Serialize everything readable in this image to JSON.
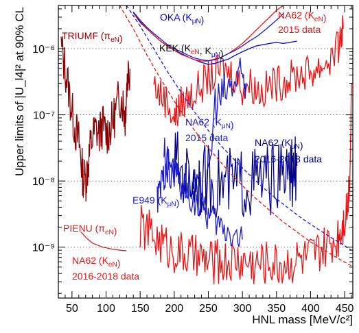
{
  "chart_data": {
    "type": "line",
    "xlabel": "HNL mass [MeV/c²]",
    "ylabel": "Upper limits of |U_l4|² at 90% CL",
    "xlim": [
      30,
      462
    ],
    "ylim": [
      1.7e-10,
      4.5e-06
    ],
    "y_scale": "log",
    "x_ticks": [
      50,
      100,
      150,
      200,
      250,
      300,
      350,
      400,
      450
    ],
    "x_tick_labels": [
      "50",
      "100",
      "150",
      "200",
      "250",
      "300",
      "350",
      "400",
      "450"
    ],
    "y_ticks": [
      1e-09,
      1e-08,
      1e-07,
      1e-06
    ],
    "y_tick_labels": [
      "10⁻⁹",
      "10⁻⁸",
      "10⁻⁷",
      "10⁻⁶"
    ],
    "grid": "dotted horizontal at decades",
    "colors": {
      "triumf": "#8b0000",
      "pienu": "#cc2222",
      "na62_keN": "#ee1111",
      "na62_kmuN_2015": "#1a1acc",
      "na62_kmuN_2016": "#00008b",
      "e949": "#1a1acc",
      "oka": "#0000dd",
      "kek_red": "#ee1111",
      "kek_blue": "#1a1acc"
    },
    "series": [
      {
        "name": "TRIUMF (πeN)",
        "color": "#8b0000",
        "style": "solid",
        "x": [
          34,
          40,
          45,
          50,
          55,
          60,
          63,
          66,
          70,
          73,
          76,
          80,
          85,
          90,
          95,
          100,
          105,
          110,
          115,
          120,
          125,
          128,
          130,
          132,
          135
        ],
        "y": [
          1.05e-06,
          5e-07,
          2.5e-07,
          1.1e-07,
          6e-08,
          4e-08,
          2.2e-08,
          1.2e-08,
          1e-08,
          1.6e-08,
          2.8e-08,
          4.5e-08,
          6e-08,
          5e-08,
          7e-08,
          5e-08,
          6e-08,
          8e-08,
          1.2e-07,
          2e-07,
          1.5e-07,
          9e-08,
          2.5e-07,
          4.5e-07,
          5e-07
        ]
      },
      {
        "name": "PIENU (πeN)",
        "color": "#cc2222",
        "style": "solid",
        "x": [
          63,
          68,
          72,
          76,
          80,
          85,
          90,
          95,
          100,
          105,
          110,
          115,
          120,
          125,
          130
        ],
        "y": [
          1.7e-09,
          1.5e-09,
          1.35e-09,
          1.25e-09,
          1.15e-09,
          1.1e-09,
          1.05e-09,
          1e-09,
          9.8e-10,
          9.5e-10,
          9.3e-10,
          9.2e-10,
          9e-10,
          8.9e-10,
          8.8e-10
        ]
      },
      {
        "name": "NA62 (KeN) 2015 data",
        "color": "#ee1111",
        "style": "solid",
        "x": [
          170,
          180,
          190,
          200,
          205,
          210,
          220,
          230,
          240,
          250,
          260,
          270,
          280,
          290,
          300,
          310,
          320,
          330,
          340,
          350,
          360,
          370,
          380,
          390,
          400,
          410,
          420,
          430,
          440,
          445,
          448
        ],
        "y": [
          3e-07,
          2e-07,
          1.6e-07,
          9e-08,
          1.1e-07,
          1.5e-07,
          1.8e-07,
          2.2e-07,
          2.8e-07,
          3.5e-07,
          4e-07,
          5e-07,
          4.5e-07,
          3.8e-07,
          2.5e-07,
          3e-07,
          2.5e-07,
          2.2e-07,
          2.8e-07,
          3e-07,
          3.2e-07,
          3.5e-07,
          4e-07,
          4.2e-07,
          4.5e-07,
          5e-07,
          6e-07,
          7e-07,
          1e-06,
          1.5e-06,
          2e-06
        ]
      },
      {
        "name": "NA62 (KμN) 2015 data",
        "color": "#1a1acc",
        "style": "solid",
        "x": [
          185,
          190,
          200,
          210,
          220,
          230,
          240,
          250,
          260,
          270,
          280,
          290,
          300,
          305
        ],
        "y": [
          3e-08,
          1.5e-08,
          1.6e-08,
          1.2e-08,
          1e-08,
          7e-09,
          6e-09,
          8e-09,
          1.6e-07,
          1.8e-07,
          2.5e-07,
          3e-07,
          3.5e-07,
          3e-07
        ]
      },
      {
        "name": "NA62 (KμN) 2016-2018 data",
        "color": "#00008b",
        "style": "solid",
        "x": [
          200,
          210,
          220,
          230,
          240,
          250,
          260,
          270,
          280,
          290,
          300,
          310,
          320,
          330,
          340,
          350,
          360,
          370,
          375,
          380
        ],
        "y": [
          2e-08,
          1.5e-08,
          1.2e-08,
          1.1e-08,
          1e-08,
          1e-08,
          9.5e-09,
          9.2e-09,
          9e-09,
          9e-09,
          9.2e-09,
          9.5e-09,
          1e-08,
          1e-08,
          1.05e-08,
          1.1e-08,
          1.15e-08,
          1.25e-08,
          1.4e-08,
          1.7e-08
        ]
      },
      {
        "name": "NA62 (KeN) 2016-2018 data",
        "color": "#ee1111",
        "style": "solid",
        "x": [
          150,
          160,
          170,
          180,
          190,
          200,
          210,
          220,
          230,
          240,
          250,
          260,
          270,
          280,
          290,
          300,
          310,
          320,
          330,
          340,
          350,
          360,
          370,
          380,
          390,
          400,
          410,
          420,
          430,
          440,
          445,
          450,
          455,
          458,
          460
        ],
        "y": [
          2e-09,
          1.8e-09,
          1.5e-09,
          1.2e-09,
          1e-09,
          9e-10,
          8e-10,
          7.5e-10,
          7e-10,
          6.5e-10,
          6e-10,
          6e-10,
          6e-10,
          6e-10,
          6.5e-10,
          6e-10,
          6e-10,
          5.5e-10,
          6e-10,
          6e-10,
          5.5e-10,
          5.5e-10,
          6e-10,
          6.5e-10,
          6.5e-10,
          7e-10,
          8e-10,
          9e-10,
          1.1e-09,
          1.5e-09,
          2e-09,
          3e-09,
          5e-09,
          2e-08,
          3e-07
        ]
      },
      {
        "name": "E949 (KμN)",
        "color": "#1a1acc",
        "style": "solid",
        "x": [
          175,
          180,
          185,
          190,
          200,
          210,
          220,
          230,
          240,
          250,
          260,
          270,
          280,
          290,
          300
        ],
        "y": [
          5e-09,
          8e-09,
          1.2e-08,
          2e-08,
          1.5e-08,
          9e-09,
          6e-09,
          5e-09,
          4e-09,
          3e-09,
          2.5e-09,
          2e-09,
          1.8e-09,
          1.5e-09,
          1.3e-09
        ]
      },
      {
        "name": "OKA (KμN)",
        "color": "#0000dd",
        "style": "solid",
        "x": [
          140,
          150,
          160,
          170,
          180,
          190,
          200,
          210,
          220,
          230,
          240,
          250,
          260,
          270,
          280,
          290,
          300,
          310,
          320,
          330,
          340,
          350,
          360,
          370,
          380
        ],
        "y": [
          3.5e-06,
          2.5e-06,
          2e-06,
          1.6e-06,
          1.3e-06,
          1.1e-06,
          9.5e-07,
          8.5e-07,
          7.5e-07,
          6.8e-07,
          6.2e-07,
          5.8e-07,
          6e-07,
          6.5e-07,
          7e-07,
          8e-07,
          9e-07,
          1e-06,
          1.1e-06,
          1.15e-06,
          1.2e-06,
          1.25e-06,
          1.2e-06,
          1.25e-06,
          1.3e-06
        ]
      },
      {
        "name": "KEK red",
        "color": "#ee1111",
        "style": "solid",
        "x": [
          140,
          150,
          160,
          170,
          180,
          190,
          200,
          210,
          220,
          230,
          240,
          250,
          260,
          270,
          280,
          290,
          300,
          310,
          320,
          330,
          340,
          350,
          360,
          370,
          380
        ],
        "y": [
          3.5e-06,
          2.6e-06,
          2e-06,
          1.6e-06,
          1.3e-06,
          1.1e-06,
          9.5e-07,
          8.2e-07,
          7.5e-07,
          6.8e-07,
          6.5e-07,
          6.5e-07,
          7e-07,
          7.5e-07,
          8.5e-07,
          1e-06,
          1.2e-06,
          1.5e-06,
          1.9e-06,
          2.4e-06,
          3e-06,
          3.8e-06,
          4.5e-06,
          4.5e-06,
          4.5e-06
        ]
      },
      {
        "name": "KEK blue",
        "color": "#1a1acc",
        "style": "solid",
        "x": [
          140,
          150,
          160,
          170,
          180,
          190,
          200,
          210,
          220,
          230,
          240,
          250,
          260,
          270,
          280,
          290,
          300,
          310,
          320,
          330,
          340,
          350,
          360
        ],
        "y": [
          3.6e-06,
          2.7e-06,
          2.1e-06,
          1.7e-06,
          1.4e-06,
          1.15e-06,
          1e-06,
          9e-07,
          8e-07,
          7.2e-07,
          6.8e-07,
          6.6e-07,
          6.8e-07,
          7.5e-07,
          8.5e-07,
          9.5e-07,
          1.1e-06,
          1.3e-06,
          1.5e-06,
          1.8e-06,
          2.2e-06,
          2.7e-06,
          3.4e-06
        ]
      },
      {
        "name": "BBN red dashed",
        "color": "#ee1111",
        "style": "dashed",
        "x": [
          120,
          140,
          160,
          180,
          200,
          220,
          240,
          260,
          280,
          300,
          320,
          340,
          360,
          380,
          400,
          420,
          440,
          460
        ],
        "y": [
          4.5e-06,
          2e-06,
          8e-07,
          3.5e-07,
          1.6e-07,
          8e-08,
          4.2e-08,
          2.4e-08,
          1.4e-08,
          8.5e-09,
          5.4e-09,
          3.6e-09,
          2.4e-09,
          1.7e-09,
          1.2e-09,
          9e-10,
          6.8e-10,
          5.2e-10
        ]
      },
      {
        "name": "BBN blue dashed",
        "color": "#1a1acc",
        "style": "dashed",
        "x": [
          130,
          150,
          170,
          190,
          210,
          230,
          250,
          270,
          290,
          310,
          330,
          350,
          370,
          390,
          410,
          430,
          450,
          460
        ],
        "y": [
          4.5e-06,
          2.2e-06,
          1e-06,
          4.5e-07,
          2.2e-07,
          1.1e-07,
          5.8e-08,
          3.3e-08,
          2e-08,
          1.25e-08,
          8e-09,
          5.4e-09,
          3.7e-09,
          2.6e-09,
          1.9e-09,
          1.4e-09,
          1.05e-09,
          9e-10
        ]
      }
    ],
    "annotations": {
      "triumf": {
        "parts": [
          {
            "t": "TRIUMF (π",
            "c": "#8b0000"
          },
          {
            "t": "eN",
            "c": "#8b0000",
            "sub": true
          },
          {
            "t": ")",
            "c": "#8b0000"
          }
        ]
      },
      "oka": {
        "parts": [
          {
            "t": "OKA (K",
            "c": "#0000dd"
          },
          {
            "t": "μN",
            "c": "#0000dd",
            "sub": true
          },
          {
            "t": ")",
            "c": "#0000dd"
          }
        ]
      },
      "kek": {
        "parts": [
          {
            "t": "KEK (K",
            "c": "#000000"
          },
          {
            "t": "eN",
            "c": "#ee1111",
            "sub": true
          },
          {
            "t": ", K",
            "c": "#000000"
          },
          {
            "t": "μN",
            "c": "#1a1acc",
            "sub": true
          },
          {
            "t": ")",
            "c": "#000000"
          }
        ]
      },
      "na62_keN_2015": {
        "line1": [
          {
            "t": "NA62 (K",
            "c": "#ee1111"
          },
          {
            "t": "eN",
            "c": "#ee1111",
            "sub": true
          },
          {
            "t": ")",
            "c": "#ee1111"
          }
        ],
        "line2": "2015 data"
      },
      "na62_kmuN_2015": {
        "line1": [
          {
            "t": "NA62 (K",
            "c": "#1a1acc"
          },
          {
            "t": "μN",
            "c": "#1a1acc",
            "sub": true
          },
          {
            "t": ")",
            "c": "#1a1acc"
          }
        ],
        "line2": "2015 data"
      },
      "na62_kmuN_2016": {
        "line1": [
          {
            "t": "NA62 (K",
            "c": "#00008b"
          },
          {
            "t": "μN",
            "c": "#00008b",
            "sub": true
          },
          {
            "t": ")",
            "c": "#00008b"
          }
        ],
        "line2": "2016-2018 data"
      },
      "e949": {
        "parts": [
          {
            "t": "E949 (K",
            "c": "#1a1acc"
          },
          {
            "t": "μN",
            "c": "#1a1acc",
            "sub": true
          },
          {
            "t": ")",
            "c": "#1a1acc"
          }
        ]
      },
      "pienu": {
        "parts": [
          {
            "t": "PIENU (π",
            "c": "#cc2222"
          },
          {
            "t": "eN",
            "c": "#cc2222",
            "sub": true
          },
          {
            "t": ")",
            "c": "#cc2222"
          }
        ]
      },
      "na62_keN_2016": {
        "line1": [
          {
            "t": "NA62 (K",
            "c": "#ee1111"
          },
          {
            "t": "eN",
            "c": "#ee1111",
            "sub": true
          },
          {
            "t": ")",
            "c": "#ee1111"
          }
        ],
        "line2": "2016-2018 data"
      }
    }
  }
}
